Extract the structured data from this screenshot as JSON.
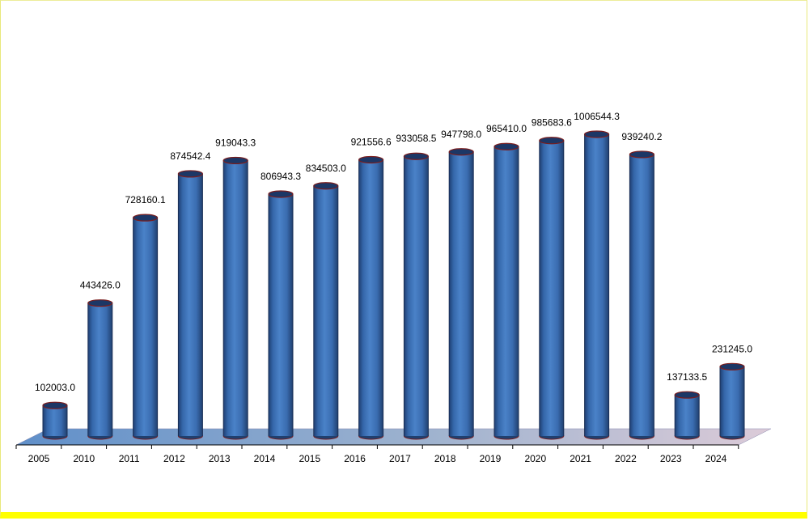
{
  "chart_data": {
    "type": "bar",
    "style": "3d-cylinder",
    "title": "",
    "xlabel": "",
    "ylabel": "",
    "categories": [
      "2005",
      "2010",
      "2011",
      "2012",
      "2013",
      "2014",
      "2015",
      "2016",
      "2017",
      "2018",
      "2019",
      "2020",
      "2021",
      "2022",
      "2023",
      "2024"
    ],
    "values": [
      102003.0,
      443426.0,
      728160.1,
      874542.4,
      919043.3,
      806943.3,
      834503.0,
      921556.6,
      933058.5,
      947798.0,
      965410.0,
      985683.6,
      1006544.3,
      939240.2,
      137133.5,
      231245.0
    ],
    "value_labels": [
      "102003.0",
      "443426.0",
      "728160.1",
      "874542.4",
      "919043.3",
      "806943.3",
      "834503.0",
      "921556.6",
      "933058.5",
      "947798.0",
      "965410.0",
      "985683.6",
      "1006544.3",
      "939240.2",
      "137133.5",
      "231245.0"
    ],
    "ylim": [
      0,
      1100000
    ],
    "grid": false,
    "legend": "none",
    "colors": {
      "bar": "#3f73b8",
      "bar_dark": "#1f3f73",
      "bar_light": "#8fb6e6",
      "bar_outline": "#7a1d1d",
      "floor_left": "#5f8fc9",
      "floor_right": "#d3c7d4",
      "frame_border": "#ffff00"
    }
  }
}
